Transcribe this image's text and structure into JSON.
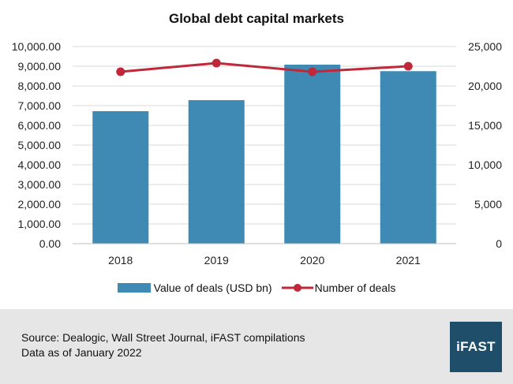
{
  "chart_data": {
    "type": "bar",
    "title": "Global debt capital markets",
    "categories": [
      "2018",
      "2019",
      "2020",
      "2021"
    ],
    "series": [
      {
        "name": "Value of deals (USD bn)",
        "type": "bar",
        "axis": "left",
        "values": [
          6720,
          7280,
          9080,
          8750
        ],
        "color": "#3f8ab5"
      },
      {
        "name": "Number of deals",
        "type": "line",
        "axis": "right",
        "values": [
          21800,
          22900,
          21800,
          22500
        ],
        "color": "#c0283a"
      }
    ],
    "y_left": {
      "min": 0,
      "max": 10000,
      "step": 1000,
      "ticks": [
        "0.00",
        "1,000.00",
        "2,000.00",
        "3,000.00",
        "4,000.00",
        "5,000.00",
        "6,000.00",
        "7,000.00",
        "8,000.00",
        "9,000.00",
        "10,000.00"
      ]
    },
    "y_right": {
      "min": 0,
      "max": 25000,
      "step": 5000,
      "ticks": [
        "0",
        "5,000",
        "10,000",
        "15,000",
        "20,000",
        "25,000"
      ]
    },
    "grid": true,
    "legend": "bottom"
  },
  "footer": {
    "source": "Source: Dealogic, Wall Street Journal, iFAST compilations",
    "note": "Data as of January 2022",
    "logo_text": "iFAST",
    "background": "#e6e6e6",
    "logo_color": "#1f4e6b"
  }
}
